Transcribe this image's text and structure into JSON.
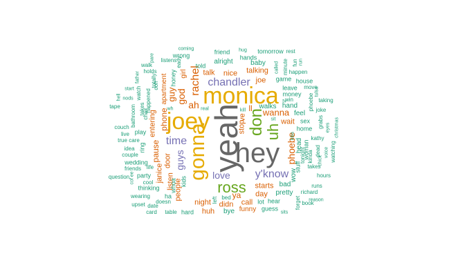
{
  "colors": {
    "teal": "#1b9e77",
    "orange": "#d95f02",
    "purple": "#7570b3",
    "pink": "#e7298a",
    "green": "#66a61e",
    "gold": "#e6ab02",
    "brown": "#a6761d",
    "gray": "#666666"
  },
  "words": [
    {
      "text": "yeah",
      "color": "gray"
    },
    {
      "text": "hey",
      "color": "gray"
    },
    {
      "text": "monica",
      "color": "gold"
    },
    {
      "text": "joey",
      "color": "gold"
    },
    {
      "text": "gonna",
      "color": "gold"
    },
    {
      "text": "ross",
      "color": "green"
    },
    {
      "text": "don",
      "color": "green"
    },
    {
      "text": "uh",
      "color": "green"
    },
    {
      "text": "y'know",
      "color": "purple"
    },
    {
      "text": "chandler",
      "color": "purple"
    },
    {
      "text": "time",
      "color": "purple"
    },
    {
      "text": "love",
      "color": "purple"
    },
    {
      "text": "guys",
      "color": "purple"
    },
    {
      "text": "rachel",
      "color": "orange"
    },
    {
      "text": "phoebe",
      "color": "orange"
    },
    {
      "text": "wanna",
      "color": "orange"
    },
    {
      "text": "god",
      "color": "orange"
    },
    {
      "text": "ah",
      "color": "orange"
    },
    {
      "text": "guy",
      "color": "orange"
    },
    {
      "text": "phone",
      "color": "orange"
    },
    {
      "text": "talking",
      "color": "orange"
    },
    {
      "text": "talk",
      "color": "orange"
    },
    {
      "text": "nice",
      "color": "orange"
    },
    {
      "text": "joe",
      "color": "orange"
    },
    {
      "text": "ll",
      "color": "orange"
    },
    {
      "text": "stop",
      "color": "orange"
    },
    {
      "text": "ve",
      "color": "orange"
    },
    {
      "text": "wait",
      "color": "orange"
    },
    {
      "text": "starts",
      "color": "orange"
    },
    {
      "text": "ya",
      "color": "orange"
    },
    {
      "text": "call",
      "color": "orange"
    },
    {
      "text": "night",
      "color": "orange"
    },
    {
      "text": "didn",
      "color": "orange"
    },
    {
      "text": "huh",
      "color": "orange"
    },
    {
      "text": "day",
      "color": "orange"
    },
    {
      "text": "door",
      "color": "orange"
    },
    {
      "text": "listen",
      "color": "orange"
    },
    {
      "text": "entering",
      "color": "orange"
    },
    {
      "text": "pause",
      "color": "orange"
    },
    {
      "text": "janice",
      "color": "orange"
    },
    {
      "text": "people",
      "color": "orange"
    },
    {
      "text": "girl",
      "color": "orange"
    },
    {
      "text": "apartment",
      "color": "orange"
    },
    {
      "text": "funny",
      "color": "orange"
    },
    {
      "text": "baby",
      "color": "teal"
    },
    {
      "text": "told",
      "color": "teal"
    },
    {
      "text": "alright",
      "color": "teal"
    },
    {
      "text": "hands",
      "color": "teal"
    },
    {
      "text": "friend",
      "color": "teal"
    },
    {
      "text": "tomorrow",
      "color": "teal"
    },
    {
      "text": "rest",
      "color": "teal"
    },
    {
      "text": "wrong",
      "color": "teal"
    },
    {
      "text": "listens",
      "color": "teal"
    },
    {
      "text": "honey",
      "color": "teal"
    },
    {
      "text": "happen",
      "color": "teal"
    },
    {
      "text": "game",
      "color": "teal"
    },
    {
      "text": "house",
      "color": "teal"
    },
    {
      "text": "leave",
      "color": "teal"
    },
    {
      "text": "move",
      "color": "teal"
    },
    {
      "text": "money",
      "color": "teal"
    },
    {
      "text": "hand",
      "color": "teal"
    },
    {
      "text": "walks",
      "color": "teal"
    },
    {
      "text": "feel",
      "color": "teal"
    },
    {
      "text": "home",
      "color": "teal"
    },
    {
      "text": "sex",
      "color": "teal"
    },
    {
      "text": "kathy",
      "color": "teal"
    },
    {
      "text": "woman",
      "color": "teal"
    },
    {
      "text": "head",
      "color": "teal"
    },
    {
      "text": "stuff",
      "color": "teal"
    },
    {
      "text": "wow",
      "color": "teal"
    },
    {
      "text": "bad",
      "color": "teal"
    },
    {
      "text": "pretty",
      "color": "teal"
    },
    {
      "text": "hear",
      "color": "teal"
    },
    {
      "text": "lot",
      "color": "teal"
    },
    {
      "text": "guess",
      "color": "teal"
    },
    {
      "text": "bye",
      "color": "teal"
    },
    {
      "text": "hard",
      "color": "teal"
    },
    {
      "text": "table",
      "color": "teal"
    },
    {
      "text": "bed",
      "color": "teal"
    },
    {
      "text": "left",
      "color": "teal"
    },
    {
      "text": "doesn",
      "color": "teal"
    },
    {
      "text": "whoa",
      "color": "teal"
    },
    {
      "text": "kids",
      "color": "teal"
    },
    {
      "text": "thinking",
      "color": "teal"
    },
    {
      "text": "party",
      "color": "teal"
    },
    {
      "text": "life",
      "color": "teal"
    },
    {
      "text": "play",
      "color": "teal"
    },
    {
      "text": "ring",
      "color": "teal"
    },
    {
      "text": "chair",
      "color": "teal"
    },
    {
      "text": "wedding",
      "color": "teal"
    },
    {
      "text": "friends",
      "color": "teal"
    },
    {
      "text": "question",
      "color": "teal"
    },
    {
      "text": "wearing",
      "color": "teal"
    },
    {
      "text": "upset",
      "color": "teal"
    },
    {
      "text": "date",
      "color": "teal"
    },
    {
      "text": "card",
      "color": "teal"
    },
    {
      "text": "cool",
      "color": "teal"
    },
    {
      "text": "ha",
      "color": "teal"
    },
    {
      "text": "idea",
      "color": "teal"
    },
    {
      "text": "couple",
      "color": "teal"
    },
    {
      "text": "true",
      "color": "teal"
    },
    {
      "text": "care",
      "color": "teal"
    },
    {
      "text": "live",
      "color": "teal"
    },
    {
      "text": "couch",
      "color": "teal"
    },
    {
      "text": "tape",
      "color": "teal"
    },
    {
      "text": "hell",
      "color": "teal"
    },
    {
      "text": "start",
      "color": "teal"
    },
    {
      "text": "nods",
      "color": "teal"
    },
    {
      "text": "walk",
      "color": "teal"
    },
    {
      "text": "holds",
      "color": "teal"
    },
    {
      "text": "bathroom",
      "color": "teal"
    },
    {
      "text": "watch",
      "color": "teal"
    },
    {
      "text": "happened",
      "color": "teal"
    },
    {
      "text": "takes",
      "color": "teal"
    },
    {
      "text": "father",
      "color": "teal"
    },
    {
      "text": "ooh",
      "color": "teal"
    },
    {
      "text": "totally",
      "color": "teal"
    },
    {
      "text": "pare",
      "color": "teal"
    },
    {
      "text": "eady",
      "color": "teal"
    },
    {
      "text": "real",
      "color": "teal"
    },
    {
      "text": "kill",
      "color": "teal"
    },
    {
      "text": "sit",
      "color": "teal"
    },
    {
      "text": "tv",
      "color": "teal"
    },
    {
      "text": "win",
      "color": "teal"
    },
    {
      "text": "minute",
      "color": "teal"
    },
    {
      "text": "called",
      "color": "teal"
    },
    {
      "text": "run",
      "color": "teal"
    },
    {
      "text": "fun",
      "color": "teal"
    },
    {
      "text": "phoebe",
      "color": "teal",
      "id": "phoebe-small"
    },
    {
      "text": "joke",
      "color": "teal"
    },
    {
      "text": "taking",
      "color": "teal"
    },
    {
      "text": "christmas",
      "color": "teal"
    },
    {
      "text": "watching",
      "color": "teal"
    },
    {
      "text": "eyes",
      "color": "teal"
    },
    {
      "text": "grabs",
      "color": "teal"
    },
    {
      "text": "tulsa",
      "color": "teal"
    },
    {
      "text": "kinda",
      "color": "teal"
    },
    {
      "text": "dead",
      "color": "teal"
    },
    {
      "text": "voice",
      "color": "teal"
    },
    {
      "text": "chick",
      "color": "teal"
    },
    {
      "text": "takes",
      "color": "teal",
      "id": "takes-2"
    },
    {
      "text": "hours",
      "color": "teal"
    },
    {
      "text": "runs",
      "color": "teal"
    },
    {
      "text": "richard",
      "color": "teal"
    },
    {
      "text": "reason",
      "color": "teal"
    },
    {
      "text": "book",
      "color": "teal"
    },
    {
      "text": "forget",
      "color": "teal"
    },
    {
      "text": "sits",
      "color": "teal"
    },
    {
      "text": "tonight",
      "color": "teal"
    },
    {
      "text": "kiss",
      "color": "teal"
    },
    {
      "text": "cof ee",
      "color": "teal"
    },
    {
      "text": "coming",
      "color": "teal"
    },
    {
      "text": "wh",
      "color": "teal"
    },
    {
      "text": "hug",
      "color": "teal"
    }
  ]
}
